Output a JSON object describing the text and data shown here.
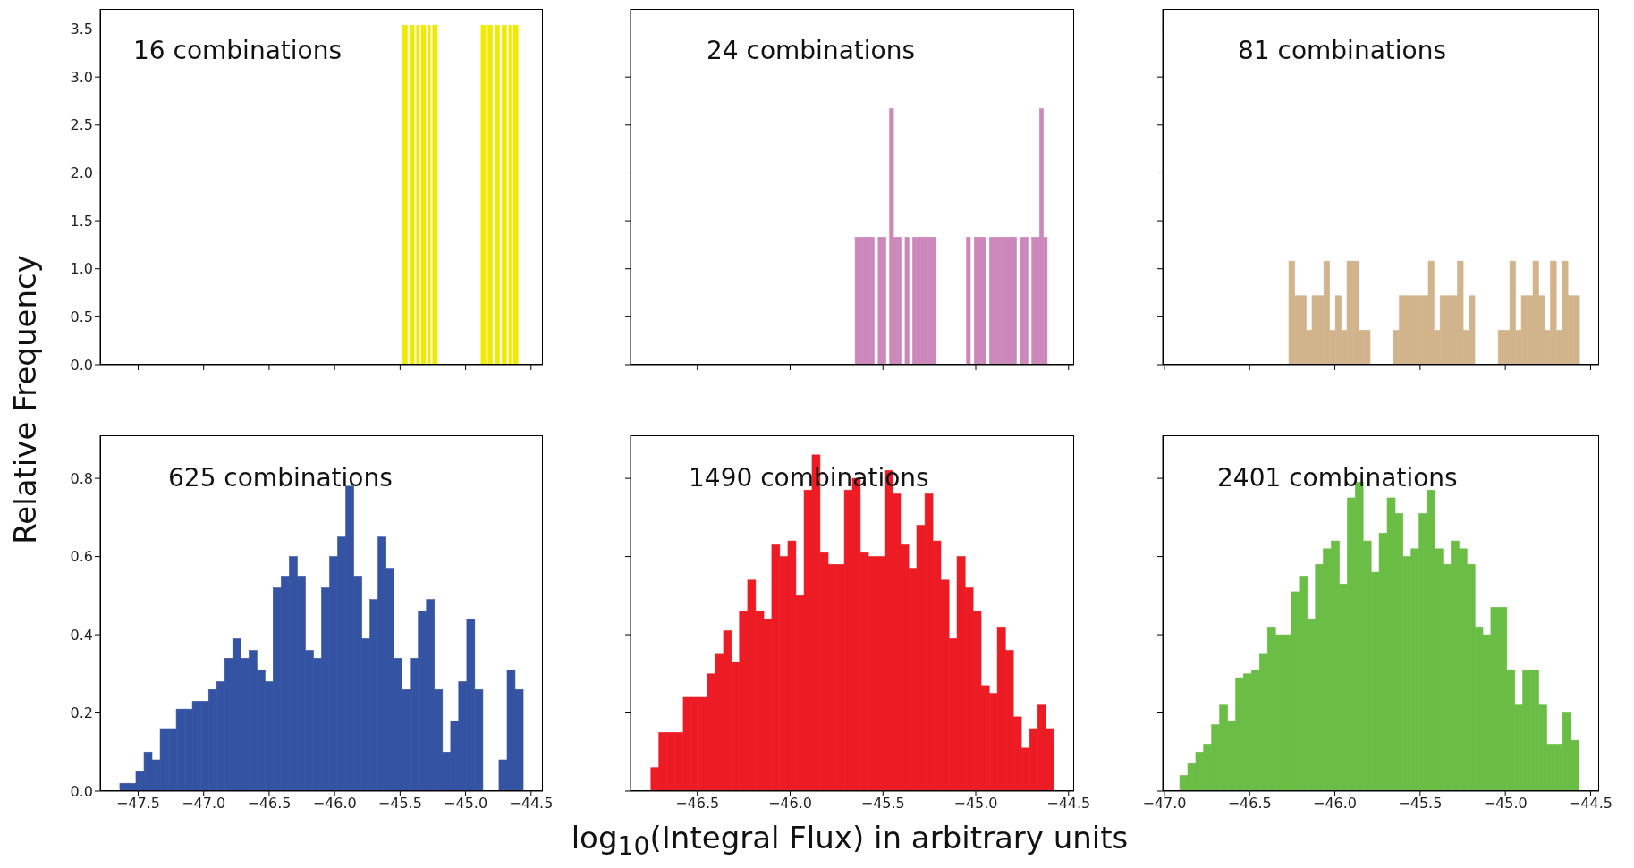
{
  "chart_data": [
    {
      "type": "histogram",
      "color": "#eeea00",
      "ylabel": "Relative Frequency",
      "annotations": [
        "16 combinations"
      ],
      "tick_labels": "y",
      "xlim": [
        -47.79,
        -44.41
      ],
      "ylim": [
        0,
        3.71
      ],
      "xticks": [
        {
          "value": -47.5,
          "label": null
        },
        {
          "value": -47,
          "label": null
        },
        {
          "value": -46.5,
          "label": null
        },
        {
          "value": -46,
          "label": null
        },
        {
          "value": -45.5,
          "label": null
        },
        {
          "value": -45,
          "label": null
        },
        {
          "value": -44.5,
          "label": null
        }
      ],
      "yticks": [
        {
          "value": 0,
          "label": "0.0"
        },
        {
          "value": 0.5,
          "label": "0.5"
        },
        {
          "value": 1,
          "label": "1.0"
        },
        {
          "value": 1.5,
          "label": "1.5"
        },
        {
          "value": 2,
          "label": "2.0"
        },
        {
          "value": 2.5,
          "label": "2.5"
        },
        {
          "value": 3,
          "label": "3.0"
        },
        {
          "value": 3.5,
          "label": "3.5"
        }
      ],
      "bins": [
        -45.48,
        -45.462,
        -45.445,
        -45.427,
        -45.41,
        -45.392,
        -45.374,
        -45.357,
        -45.339,
        -45.322,
        -45.304,
        -45.286,
        -45.269,
        -45.251,
        -45.234,
        -45.216,
        -45.198,
        -45.181,
        -45.163,
        -45.146,
        -45.128,
        -45.11,
        -45.093,
        -45.075,
        -45.058,
        -45.04,
        -45.022,
        -45.005,
        -44.987,
        -44.97,
        -44.952,
        -44.934,
        -44.917,
        -44.899,
        -44.882,
        -44.864,
        -44.846,
        -44.829,
        -44.811,
        -44.794,
        -44.776,
        -44.758,
        -44.741,
        -44.723,
        -44.706,
        -44.688,
        -44.67,
        -44.653,
        -44.635,
        -44.618,
        -44.6
      ],
      "values": [
        3.54,
        3.54,
        0,
        3.54,
        3.54,
        0,
        3.54,
        0,
        3.54,
        3.54,
        0,
        3.54,
        0,
        3.54,
        3.54,
        0,
        0,
        0,
        0,
        0,
        0,
        0,
        0,
        0,
        0,
        0,
        0,
        0,
        0,
        0,
        0,
        0,
        0,
        0,
        3.54,
        3.54,
        0,
        3.54,
        3.54,
        0,
        3.54,
        3.54,
        0,
        3.54,
        3.54,
        0,
        3.54,
        0,
        3.54,
        3.54
      ]
    },
    {
      "type": "histogram",
      "color": "#cc88bb",
      "annotations": [
        "24 combinations"
      ],
      "tick_labels": false,
      "xlim": [
        -46.86,
        -44.47
      ],
      "ylim": [
        0,
        3.71
      ],
      "xticks": [
        {
          "value": -46.5,
          "label": null
        },
        {
          "value": -46,
          "label": null
        },
        {
          "value": -45.5,
          "label": null
        },
        {
          "value": -45,
          "label": null
        },
        {
          "value": -44.5,
          "label": null
        }
      ],
      "yticks": [
        {
          "value": 0,
          "label": null
        },
        {
          "value": 0.5,
          "label": null
        },
        {
          "value": 1,
          "label": null
        },
        {
          "value": 1.5,
          "label": null
        },
        {
          "value": 2,
          "label": null
        },
        {
          "value": 2.5,
          "label": null
        },
        {
          "value": 3,
          "label": null
        },
        {
          "value": 3.5,
          "label": null
        }
      ],
      "bins": [
        -45.65,
        -45.629,
        -45.609,
        -45.588,
        -45.567,
        -45.547,
        -45.526,
        -45.505,
        -45.484,
        -45.464,
        -45.443,
        -45.422,
        -45.402,
        -45.381,
        -45.36,
        -45.34,
        -45.319,
        -45.298,
        -45.277,
        -45.257,
        -45.236,
        -45.215,
        -45.195,
        -45.174,
        -45.153,
        -45.133,
        -45.112,
        -45.091,
        -45.07,
        -45.05,
        -45.029,
        -45.008,
        -44.988,
        -44.967,
        -44.946,
        -44.926,
        -44.905,
        -44.884,
        -44.863,
        -44.843,
        -44.822,
        -44.801,
        -44.781,
        -44.76,
        -44.739,
        -44.719,
        -44.698,
        -44.677,
        -44.656,
        -44.636,
        -44.615
      ],
      "values": [
        1.33,
        1.33,
        1.33,
        1.33,
        1.33,
        0,
        1.33,
        1.33,
        0,
        2.67,
        1.33,
        1.33,
        0,
        1.33,
        0,
        1.33,
        1.33,
        1.33,
        1.33,
        1.33,
        1.33,
        0,
        0,
        0,
        0,
        0,
        0,
        0,
        0,
        1.33,
        0,
        1.33,
        1.33,
        1.33,
        0,
        1.33,
        1.33,
        1.33,
        1.33,
        1.33,
        1.33,
        1.33,
        0,
        1.33,
        1.33,
        0,
        1.33,
        1.33,
        2.67,
        1.33
      ]
    },
    {
      "type": "histogram",
      "color": "#d2b48c",
      "annotations": [
        "81 combinations"
      ],
      "tick_labels": false,
      "xlim": [
        -47.01,
        -44.45
      ],
      "ylim": [
        0,
        3.71
      ],
      "xticks": [
        {
          "value": -47,
          "label": null
        },
        {
          "value": -46.5,
          "label": null
        },
        {
          "value": -46,
          "label": null
        },
        {
          "value": -45.5,
          "label": null
        },
        {
          "value": -45,
          "label": null
        },
        {
          "value": -44.5,
          "label": null
        }
      ],
      "yticks": [
        {
          "value": 0,
          "label": null
        },
        {
          "value": 0.5,
          "label": null
        },
        {
          "value": 1,
          "label": null
        },
        {
          "value": 1.5,
          "label": null
        },
        {
          "value": 2,
          "label": null
        },
        {
          "value": 2.5,
          "label": null
        },
        {
          "value": 3,
          "label": null
        },
        {
          "value": 3.5,
          "label": null
        }
      ],
      "bins": [
        -46.27,
        -46.236,
        -46.202,
        -46.168,
        -46.134,
        -46.1,
        -46.065,
        -46.031,
        -45.997,
        -45.963,
        -45.929,
        -45.895,
        -45.861,
        -45.827,
        -45.793,
        -45.759,
        -45.724,
        -45.69,
        -45.656,
        -45.622,
        -45.588,
        -45.554,
        -45.52,
        -45.486,
        -45.452,
        -45.418,
        -45.383,
        -45.349,
        -45.315,
        -45.281,
        -45.247,
        -45.213,
        -45.179,
        -45.145,
        -45.111,
        -45.077,
        -45.042,
        -45.008,
        -44.974,
        -44.94,
        -44.906,
        -44.872,
        -44.838,
        -44.804,
        -44.77,
        -44.736,
        -44.701,
        -44.667,
        -44.633,
        -44.599,
        -44.565
      ],
      "values": [
        1.08,
        0.72,
        0.72,
        0.36,
        0.72,
        0.72,
        1.08,
        0.36,
        0.72,
        0.36,
        1.08,
        1.08,
        0.36,
        0.36,
        0,
        0,
        0,
        0,
        0.36,
        0.72,
        0.72,
        0.72,
        0.72,
        0.72,
        1.08,
        0.36,
        0.72,
        0.72,
        0.72,
        1.08,
        0.36,
        0.72,
        0,
        0,
        0,
        0,
        0.36,
        0.36,
        1.08,
        0.36,
        0.72,
        0.72,
        1.08,
        0.72,
        0.36,
        1.08,
        0.36,
        1.08,
        0.72,
        0.72
      ]
    },
    {
      "type": "histogram",
      "color": "#3453a3",
      "annotations": [
        "625 combinations"
      ],
      "xlim": [
        -47.79,
        -44.41
      ],
      "ylim": [
        0,
        0.91
      ],
      "xticks": [
        {
          "value": -47.5,
          "label": "−47.5"
        },
        {
          "value": -47,
          "label": "−47.0"
        },
        {
          "value": -46.5,
          "label": "−46.5"
        },
        {
          "value": -46,
          "label": "−46.0"
        },
        {
          "value": -45.5,
          "label": "−45.5"
        },
        {
          "value": -45,
          "label": "−45.0"
        },
        {
          "value": -44.5,
          "label": "−44.5"
        }
      ],
      "yticks": [
        {
          "value": 0,
          "label": "0.0"
        },
        {
          "value": 0.2,
          "label": "0.2"
        },
        {
          "value": 0.4,
          "label": "0.4"
        },
        {
          "value": 0.6,
          "label": "0.6"
        },
        {
          "value": 0.8,
          "label": "0.8"
        }
      ],
      "bins": [
        -47.64,
        -47.578,
        -47.517,
        -47.455,
        -47.394,
        -47.332,
        -47.27,
        -47.209,
        -47.147,
        -47.086,
        -47.024,
        -46.962,
        -46.901,
        -46.839,
        -46.778,
        -46.716,
        -46.654,
        -46.593,
        -46.531,
        -46.47,
        -46.408,
        -46.346,
        -46.285,
        -46.223,
        -46.162,
        -46.1,
        -46.038,
        -45.977,
        -45.915,
        -45.854,
        -45.792,
        -45.73,
        -45.669,
        -45.607,
        -45.546,
        -45.484,
        -45.422,
        -45.361,
        -45.299,
        -45.238,
        -45.176,
        -45.114,
        -45.053,
        -44.991,
        -44.93,
        -44.868,
        -44.806,
        -44.745,
        -44.683,
        -44.622,
        -44.56
      ],
      "values": [
        0.02,
        0.02,
        0.05,
        0.1,
        0.08,
        0.16,
        0.16,
        0.21,
        0.21,
        0.23,
        0.23,
        0.26,
        0.28,
        0.34,
        0.39,
        0.34,
        0.36,
        0.31,
        0.28,
        0.52,
        0.55,
        0.6,
        0.55,
        0.36,
        0.34,
        0.52,
        0.6,
        0.65,
        0.78,
        0.55,
        0.39,
        0.49,
        0.65,
        0.57,
        0.34,
        0.26,
        0.34,
        0.46,
        0.49,
        0.26,
        0.1,
        0.18,
        0.28,
        0.44,
        0.26,
        0,
        0,
        0.08,
        0.31,
        0.26
      ]
    },
    {
      "type": "histogram",
      "color": "#ed1c24",
      "xlabel": "log$_{10}$(Integral Flux) in arbitrary units",
      "annotations": [
        "1490 combinations"
      ],
      "tick_labels": "x",
      "xlim": [
        -46.86,
        -44.47
      ],
      "ylim": [
        0,
        0.91
      ],
      "xticks": [
        {
          "value": -46.5,
          "label": "−46.5"
        },
        {
          "value": -46,
          "label": "−46.0"
        },
        {
          "value": -45.5,
          "label": "−45.5"
        },
        {
          "value": -45,
          "label": "−45.0"
        },
        {
          "value": -44.5,
          "label": "−44.5"
        }
      ],
      "yticks": [
        {
          "value": 0,
          "label": null
        },
        {
          "value": 0.2,
          "label": null
        },
        {
          "value": 0.4,
          "label": null
        },
        {
          "value": 0.6,
          "label": null
        },
        {
          "value": 0.8,
          "label": null
        }
      ],
      "bins": [
        -46.75,
        -46.707,
        -46.663,
        -46.62,
        -46.576,
        -46.533,
        -46.49,
        -46.446,
        -46.403,
        -46.359,
        -46.316,
        -46.273,
        -46.229,
        -46.186,
        -46.142,
        -46.099,
        -46.056,
        -46.012,
        -45.969,
        -45.925,
        -45.882,
        -45.839,
        -45.795,
        -45.752,
        -45.708,
        -45.665,
        -45.622,
        -45.578,
        -45.535,
        -45.491,
        -45.448,
        -45.405,
        -45.361,
        -45.318,
        -45.274,
        -45.231,
        -45.188,
        -45.144,
        -45.101,
        -45.057,
        -45.014,
        -44.971,
        -44.927,
        -44.884,
        -44.84,
        -44.797,
        -44.754,
        -44.71,
        -44.667,
        -44.623,
        -44.58
      ],
      "values": [
        0.06,
        0.15,
        0.15,
        0.15,
        0.24,
        0.24,
        0.24,
        0.3,
        0.35,
        0.41,
        0.33,
        0.46,
        0.54,
        0.46,
        0.44,
        0.63,
        0.6,
        0.64,
        0.5,
        0.77,
        0.86,
        0.61,
        0.58,
        0.58,
        0.77,
        0.8,
        0.61,
        0.6,
        0.6,
        0.82,
        0.76,
        0.63,
        0.57,
        0.68,
        0.76,
        0.64,
        0.54,
        0.39,
        0.6,
        0.52,
        0.46,
        0.27,
        0.25,
        0.42,
        0.36,
        0.19,
        0.11,
        0.16,
        0.22,
        0.16
      ]
    },
    {
      "type": "histogram",
      "color": "#6abd45",
      "annotations": [
        "2401 combinations"
      ],
      "tick_labels": "x",
      "xlim": [
        -47.01,
        -44.45
      ],
      "ylim": [
        0,
        0.91
      ],
      "xticks": [
        {
          "value": -47,
          "label": "−47.0"
        },
        {
          "value": -46.5,
          "label": "−46.5"
        },
        {
          "value": -46,
          "label": "−46.0"
        },
        {
          "value": -45.5,
          "label": "−45.5"
        },
        {
          "value": -45,
          "label": "−45.0"
        },
        {
          "value": -44.5,
          "label": "−44.5"
        }
      ],
      "yticks": [
        {
          "value": 0,
          "label": null
        },
        {
          "value": 0.2,
          "label": null
        },
        {
          "value": 0.4,
          "label": null
        },
        {
          "value": 0.6,
          "label": null
        },
        {
          "value": 0.8,
          "label": null
        }
      ],
      "bins": [
        -46.91,
        -46.863,
        -46.816,
        -46.77,
        -46.723,
        -46.676,
        -46.629,
        -46.582,
        -46.536,
        -46.489,
        -46.442,
        -46.395,
        -46.348,
        -46.302,
        -46.255,
        -46.208,
        -46.161,
        -46.114,
        -46.068,
        -46.021,
        -45.974,
        -45.927,
        -45.88,
        -45.834,
        -45.787,
        -45.74,
        -45.693,
        -45.646,
        -45.6,
        -45.553,
        -45.506,
        -45.459,
        -45.412,
        -45.366,
        -45.319,
        -45.272,
        -45.225,
        -45.178,
        -45.132,
        -45.085,
        -45.038,
        -44.991,
        -44.944,
        -44.898,
        -44.851,
        -44.804,
        -44.757,
        -44.71,
        -44.664,
        -44.617,
        -44.57
      ],
      "values": [
        0.04,
        0.07,
        0.1,
        0.12,
        0.17,
        0.22,
        0.18,
        0.29,
        0.3,
        0.31,
        0.35,
        0.42,
        0.4,
        0.4,
        0.51,
        0.55,
        0.44,
        0.58,
        0.62,
        0.64,
        0.53,
        0.75,
        0.79,
        0.64,
        0.56,
        0.66,
        0.75,
        0.71,
        0.6,
        0.62,
        0.71,
        0.77,
        0.62,
        0.58,
        0.64,
        0.62,
        0.58,
        0.42,
        0.4,
        0.47,
        0.47,
        0.31,
        0.22,
        0.31,
        0.31,
        0.22,
        0.12,
        0.12,
        0.2,
        0.13
      ]
    }
  ]
}
